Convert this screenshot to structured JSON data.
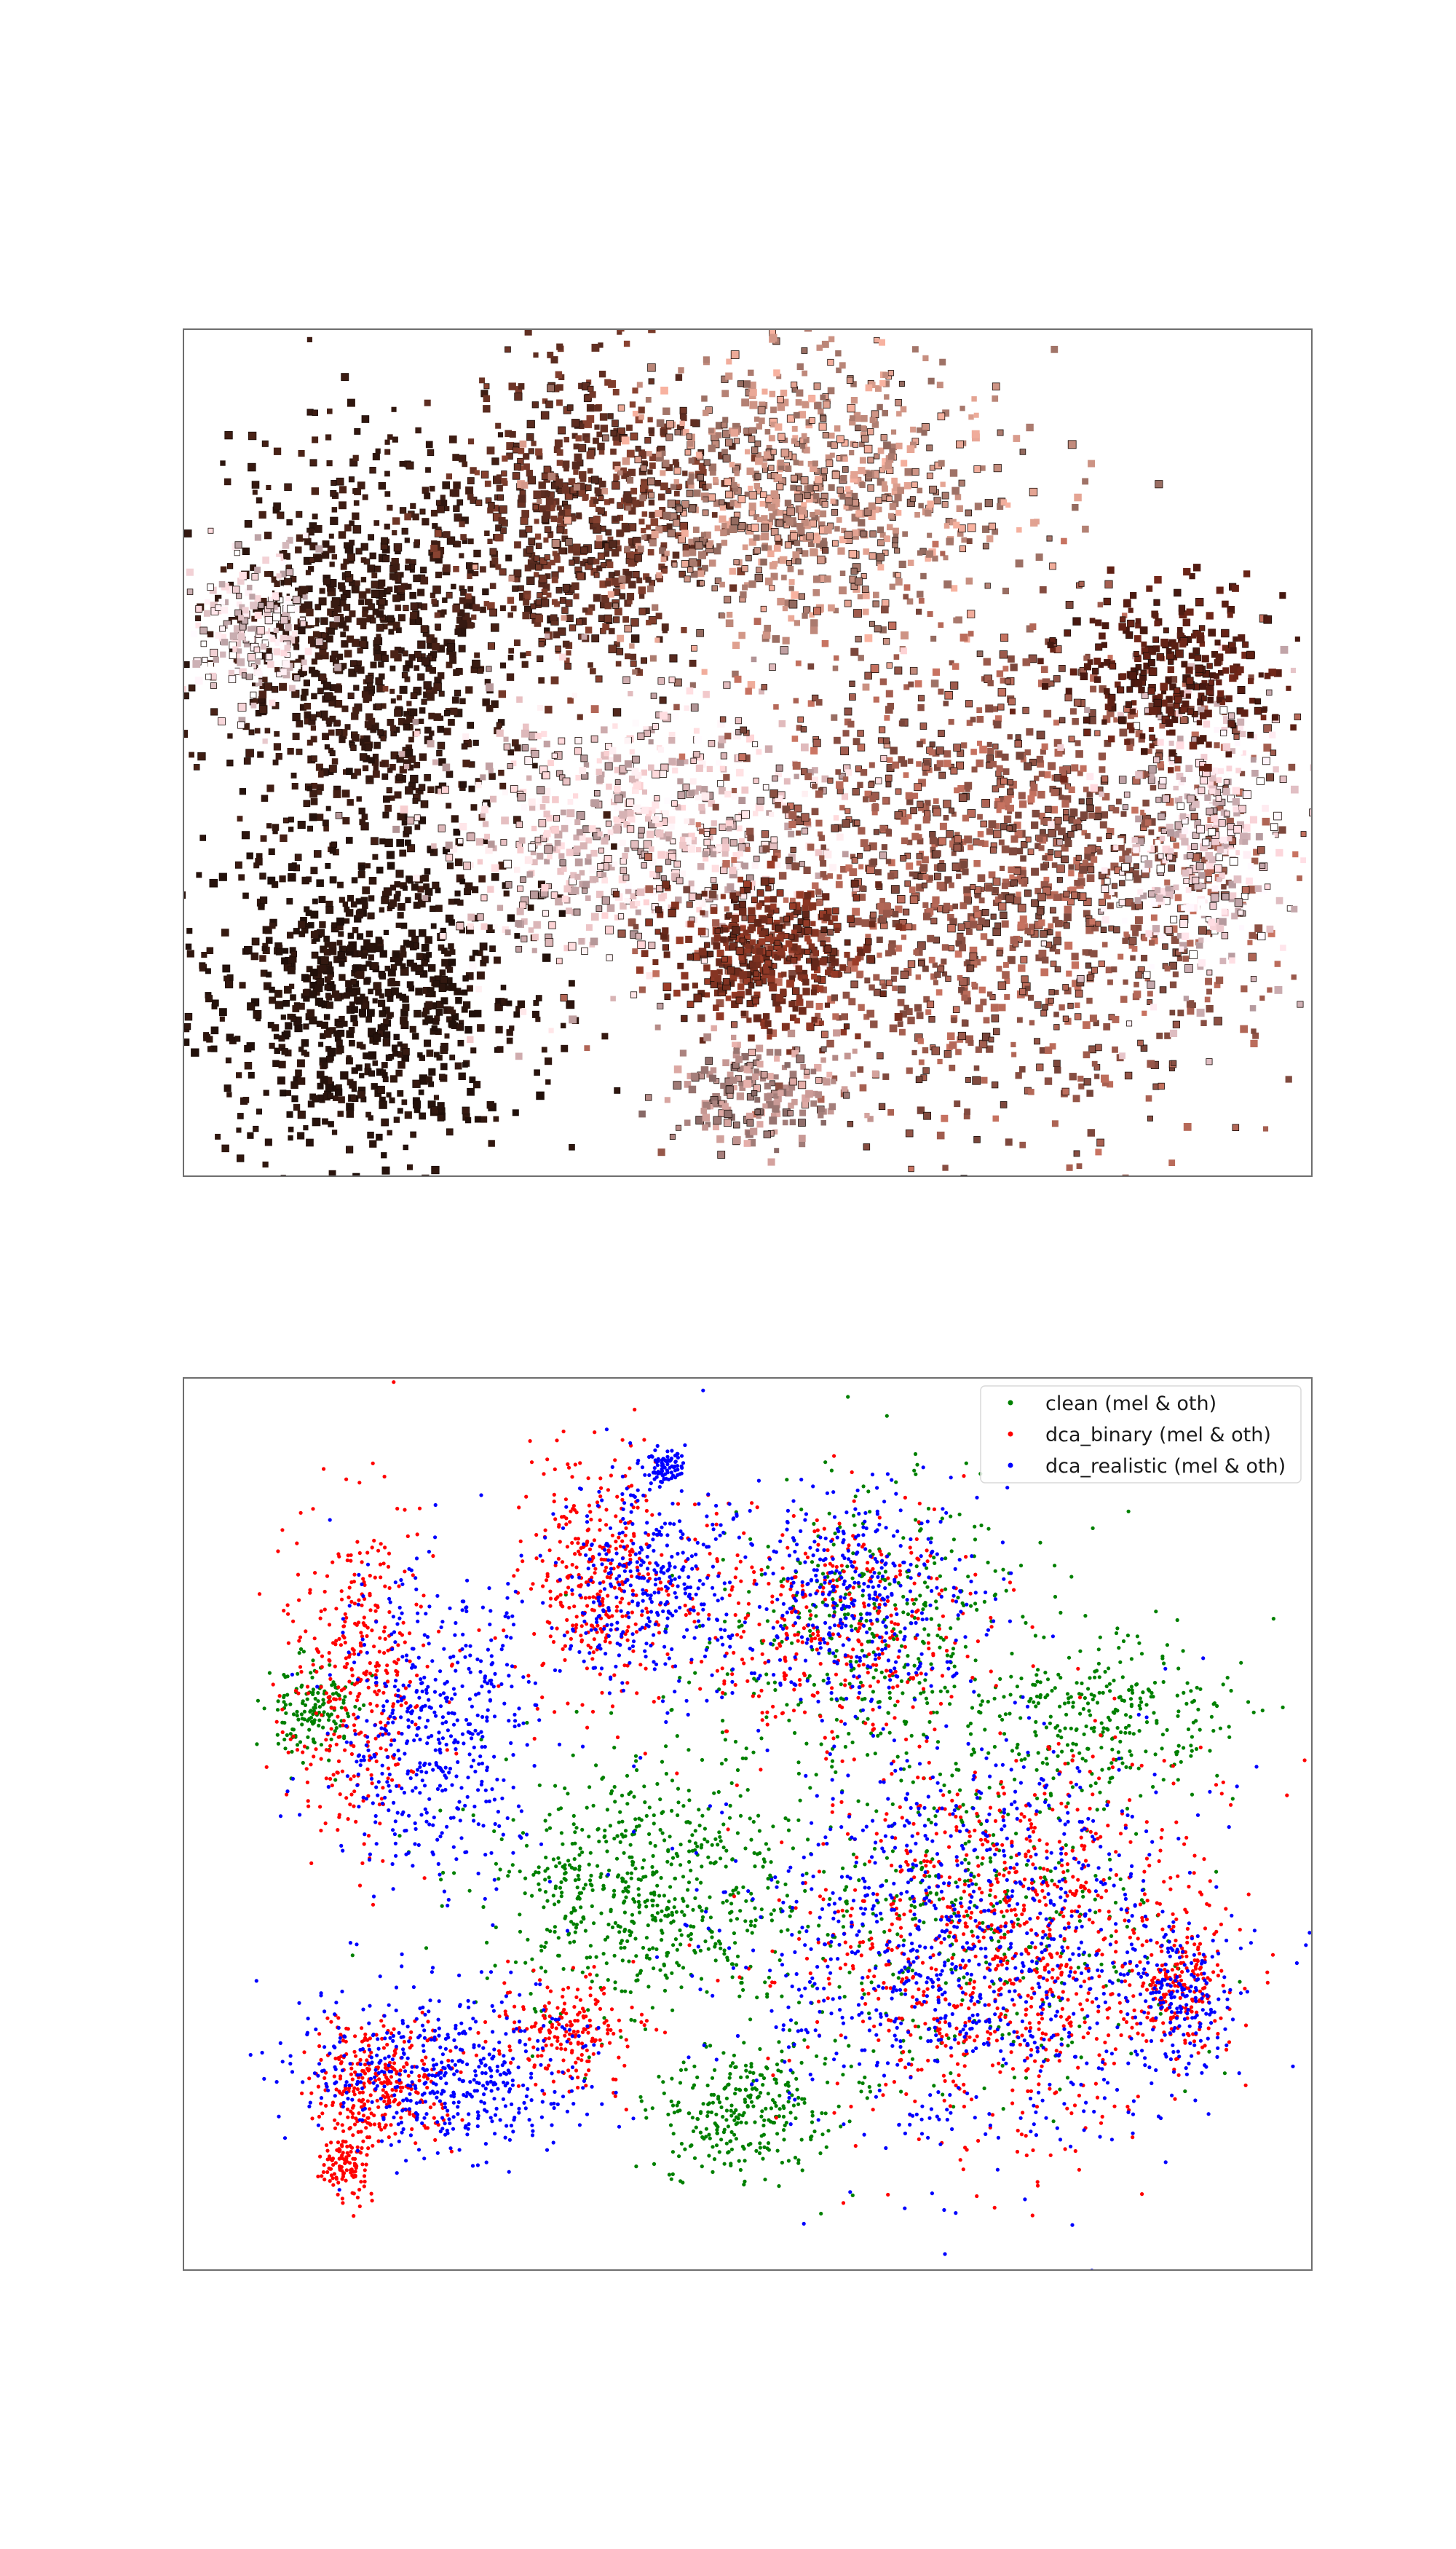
{
  "chart_data": [
    {
      "type": "scatter",
      "subtype": "image-thumbnail-embedding",
      "title": "",
      "xlabel": "",
      "ylabel": "",
      "axes_visible": false,
      "grid": false,
      "regions": [
        {
          "color": "#3a1b12",
          "cx": 0.17,
          "cy": 0.38,
          "rx": 0.12,
          "ry": 0.22,
          "n": 900
        },
        {
          "color": "#2a140d",
          "cx": 0.16,
          "cy": 0.78,
          "rx": 0.14,
          "ry": 0.17,
          "n": 850
        },
        {
          "color": "#6b3426",
          "cx": 0.36,
          "cy": 0.22,
          "rx": 0.1,
          "ry": 0.16,
          "n": 650
        },
        {
          "color": "#c08a7c",
          "cx": 0.56,
          "cy": 0.2,
          "rx": 0.16,
          "ry": 0.16,
          "n": 900
        },
        {
          "color": "#e9c2c4",
          "cx": 0.4,
          "cy": 0.6,
          "rx": 0.16,
          "ry": 0.14,
          "n": 700
        },
        {
          "color": "#9c5a4c",
          "cx": 0.72,
          "cy": 0.65,
          "rx": 0.22,
          "ry": 0.25,
          "n": 1500
        },
        {
          "color": "#f1cdd2",
          "cx": 0.9,
          "cy": 0.6,
          "rx": 0.08,
          "ry": 0.16,
          "n": 400
        },
        {
          "color": "#5a1f14",
          "cx": 0.88,
          "cy": 0.4,
          "rx": 0.09,
          "ry": 0.09,
          "n": 280
        },
        {
          "color": "#f4d3d7",
          "cx": 0.06,
          "cy": 0.35,
          "rx": 0.05,
          "ry": 0.08,
          "n": 220
        },
        {
          "color": "#7a3020",
          "cx": 0.52,
          "cy": 0.74,
          "rx": 0.08,
          "ry": 0.08,
          "n": 400
        },
        {
          "color": "#b48a86",
          "cx": 0.5,
          "cy": 0.9,
          "rx": 0.08,
          "ry": 0.06,
          "n": 200
        }
      ]
    },
    {
      "type": "scatter",
      "title": "",
      "xlabel": "",
      "ylabel": "",
      "axes_visible": false,
      "grid": false,
      "legend": {
        "placement": "top-right"
      },
      "series": [
        {
          "name": "clean (mel & oth)",
          "color": "#008000",
          "regions": [
            {
              "cx": 0.62,
              "cy": 0.25,
              "rx": 0.16,
              "ry": 0.18,
              "n": 380
            },
            {
              "cx": 0.4,
              "cy": 0.58,
              "rx": 0.16,
              "ry": 0.16,
              "n": 650
            },
            {
              "cx": 0.5,
              "cy": 0.85,
              "rx": 0.09,
              "ry": 0.08,
              "n": 280
            },
            {
              "cx": 0.08,
              "cy": 0.36,
              "rx": 0.04,
              "ry": 0.06,
              "n": 150
            },
            {
              "cx": 0.85,
              "cy": 0.37,
              "rx": 0.13,
              "ry": 0.09,
              "n": 300
            },
            {
              "cx": 0.7,
              "cy": 0.62,
              "rx": 0.2,
              "ry": 0.22,
              "n": 380
            }
          ]
        },
        {
          "name": "dca_binary (mel & oth)",
          "color": "#ff0000",
          "regions": [
            {
              "cx": 0.12,
              "cy": 0.32,
              "rx": 0.07,
              "ry": 0.2,
              "n": 380
            },
            {
              "cx": 0.14,
              "cy": 0.82,
              "rx": 0.07,
              "ry": 0.08,
              "n": 320
            },
            {
              "cx": 0.11,
              "cy": 0.92,
              "rx": 0.025,
              "ry": 0.04,
              "n": 110
            },
            {
              "cx": 0.36,
              "cy": 0.2,
              "rx": 0.08,
              "ry": 0.14,
              "n": 360
            },
            {
              "cx": 0.58,
              "cy": 0.25,
              "rx": 0.14,
              "ry": 0.14,
              "n": 380
            },
            {
              "cx": 0.75,
              "cy": 0.65,
              "rx": 0.2,
              "ry": 0.24,
              "n": 950
            },
            {
              "cx": 0.92,
              "cy": 0.7,
              "rx": 0.04,
              "ry": 0.08,
              "n": 160
            },
            {
              "cx": 0.32,
              "cy": 0.75,
              "rx": 0.07,
              "ry": 0.07,
              "n": 200
            }
          ]
        },
        {
          "name": "dca_realistic (mel & oth)",
          "color": "#0000ff",
          "regions": [
            {
              "cx": 0.2,
              "cy": 0.38,
              "rx": 0.1,
              "ry": 0.2,
              "n": 500
            },
            {
              "cx": 0.2,
              "cy": 0.8,
              "rx": 0.14,
              "ry": 0.1,
              "n": 500
            },
            {
              "cx": 0.4,
              "cy": 0.2,
              "rx": 0.08,
              "ry": 0.14,
              "n": 360
            },
            {
              "cx": 0.6,
              "cy": 0.22,
              "rx": 0.12,
              "ry": 0.14,
              "n": 420
            },
            {
              "cx": 0.72,
              "cy": 0.65,
              "rx": 0.22,
              "ry": 0.25,
              "n": 1000
            },
            {
              "cx": 0.42,
              "cy": 0.06,
              "rx": 0.02,
              "ry": 0.02,
              "n": 80
            },
            {
              "cx": 0.92,
              "cy": 0.72,
              "rx": 0.05,
              "ry": 0.08,
              "n": 150
            }
          ]
        }
      ]
    }
  ]
}
